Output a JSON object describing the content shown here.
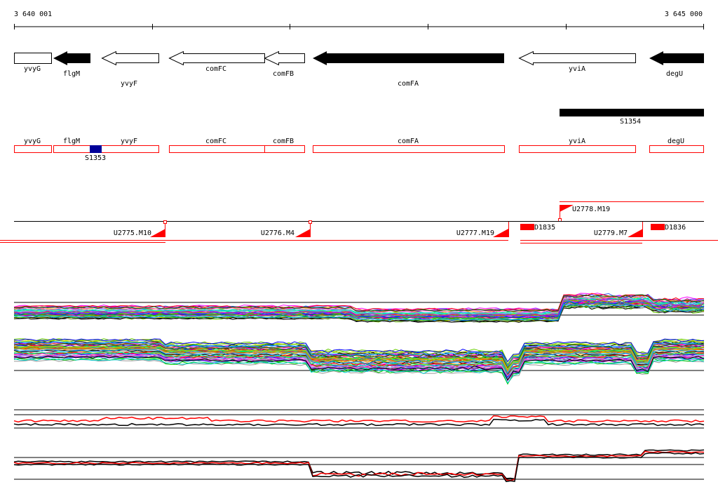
{
  "coords": {
    "start_label": "3 640 001",
    "end_label": "3 645 000",
    "start": 3640001,
    "end": 3645000
  },
  "colors": {
    "black": "#000000",
    "red": "#ff0000",
    "blue": "#000099"
  },
  "genes": [
    {
      "name": "yvyG",
      "start": 3640001,
      "end": 3640280,
      "strand": "+",
      "fill": "white"
    },
    {
      "name": "flgM",
      "start": 3640280,
      "end": 3640560,
      "strand": "-",
      "fill": "black"
    },
    {
      "name": "yvyF",
      "start": 3640630,
      "end": 3641050,
      "strand": "-",
      "fill": "white"
    },
    {
      "name": "comFC",
      "start": 3641130,
      "end": 3641830,
      "strand": "-",
      "fill": "white"
    },
    {
      "name": "comFB",
      "start": 3641830,
      "end": 3642130,
      "strand": "-",
      "fill": "white"
    },
    {
      "name": "comFA",
      "start": 3642220,
      "end": 3643610,
      "strand": "-",
      "fill": "black"
    },
    {
      "name": "yviA",
      "start": 3643720,
      "end": 3644560,
      "strand": "-",
      "fill": "white"
    },
    {
      "name": "degU",
      "start": 3644610,
      "end": 3645000,
      "strand": "-",
      "fill": "black"
    }
  ],
  "black_bar": {
    "label": "S1354",
    "start": 3643960,
    "end": 3645000
  },
  "red_boxes": [
    {
      "name": "yvyG",
      "start": 3640001,
      "end": 3640270
    },
    {
      "name": "flgM",
      "start": 3640290,
      "end": 3640560
    },
    {
      "name": "yvyF",
      "start": 3640290,
      "end": 3641050
    },
    {
      "name": "comFC",
      "start": 3641130,
      "end": 3641830
    },
    {
      "name": "comFB",
      "start": 3641830,
      "end": 3642130
    },
    {
      "name": "comFA",
      "start": 3642220,
      "end": 3643610
    },
    {
      "name": "yviA",
      "start": 3643720,
      "end": 3644560
    },
    {
      "name": "degU",
      "start": 3644610,
      "end": 3645000
    }
  ],
  "blue_mark": {
    "label": "S1353",
    "start": 3640560,
    "end": 3640640
  },
  "upper_segments": [
    {
      "label": "U2778.M19",
      "start": 3643960,
      "end": 3645000
    }
  ],
  "lower_segments": [
    {
      "label": "U2775.M10",
      "start": 3640001,
      "end": 3641100
    },
    {
      "label": "U2776.M4",
      "start": 3641100,
      "end": 3642160
    },
    {
      "label": "U2777.M19",
      "start": 3642160,
      "end": 3643580
    },
    {
      "label": "U2779.M7",
      "start": 3643720,
      "end": 3644560
    }
  ],
  "red_markers": [
    {
      "label": "D1835",
      "start": 3643720,
      "end": 3643820
    },
    {
      "label": "D1836",
      "start": 3644610,
      "end": 3644710
    }
  ]
}
